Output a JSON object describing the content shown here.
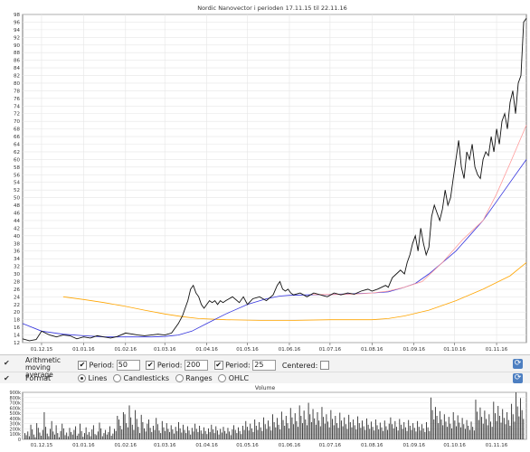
{
  "chart_data": [
    {
      "type": "line",
      "title": "Nordic Nanovector i perioden 17.11.15 til 22.11.16",
      "ylim": [
        12,
        98
      ],
      "y_ticks": [
        12,
        14,
        16,
        18,
        20,
        22,
        24,
        26,
        28,
        30,
        32,
        34,
        36,
        38,
        40,
        42,
        44,
        46,
        48,
        50,
        52,
        54,
        56,
        58,
        60,
        62,
        64,
        66,
        68,
        70,
        72,
        74,
        76,
        78,
        80,
        82,
        84,
        86,
        88,
        90,
        92,
        94,
        96,
        98
      ],
      "x_tick_labels": [
        "01.12.15",
        "01.01.16",
        "01.02.16",
        "01.03.16",
        "01.04.16",
        "01.05.16",
        "01.06.16",
        "01.07.16",
        "01.08.16",
        "01.09.16",
        "01.10.16",
        "01.11.16"
      ],
      "x_tick_positions": [
        14,
        45,
        76,
        105,
        136,
        166,
        197,
        227,
        258,
        289,
        319,
        350
      ],
      "grid": true,
      "series": [
        {
          "key": "price",
          "color": "#111111",
          "x": [
            0,
            5,
            10,
            14,
            20,
            25,
            30,
            35,
            40,
            45,
            50,
            55,
            60,
            65,
            70,
            76,
            80,
            85,
            90,
            95,
            100,
            105,
            110,
            115,
            118,
            120,
            122,
            124,
            126,
            128,
            130,
            132,
            134,
            136,
            138,
            140,
            142,
            144,
            146,
            148,
            150,
            155,
            160,
            163,
            166,
            170,
            175,
            180,
            185,
            188,
            190,
            192,
            194,
            196,
            198,
            200,
            205,
            210,
            215,
            220,
            225,
            230,
            235,
            240,
            245,
            250,
            255,
            258,
            262,
            265,
            268,
            270,
            273,
            276,
            279,
            282,
            284,
            286,
            288,
            290,
            292,
            294,
            296,
            298,
            300,
            302,
            304,
            306,
            308,
            310,
            312,
            314,
            316,
            318,
            320,
            322,
            324,
            326,
            328,
            330,
            332,
            334,
            336,
            338,
            340,
            342,
            344,
            346,
            348,
            350,
            352,
            354,
            356,
            358,
            360,
            362,
            364,
            366,
            368,
            370,
            372
          ],
          "y": [
            13,
            12.5,
            12.8,
            15,
            14,
            13.5,
            14,
            13.8,
            13,
            13.5,
            13.2,
            13.8,
            13.5,
            13.2,
            13.6,
            14.5,
            14.3,
            14,
            13.8,
            14,
            14.2,
            14,
            14.5,
            17,
            19,
            21,
            23,
            26,
            27,
            25,
            24,
            22,
            21,
            22,
            23,
            22.5,
            23,
            22,
            23,
            22.5,
            23,
            24,
            22.5,
            24,
            22,
            23.5,
            24,
            23,
            24.5,
            27,
            28,
            26,
            25.5,
            26,
            25,
            24.5,
            25,
            24,
            25,
            24.5,
            24,
            25,
            24.5,
            25,
            24.7,
            25.5,
            26,
            25.5,
            26,
            26.5,
            27,
            26.5,
            29,
            30,
            31,
            30,
            33,
            35,
            38,
            40,
            36,
            42,
            38,
            35,
            37,
            45,
            48,
            46,
            44,
            47,
            52,
            48,
            50,
            55,
            60,
            65,
            58,
            55,
            62,
            60,
            64,
            58,
            56,
            55,
            60,
            62,
            61,
            66,
            62,
            68,
            64,
            70,
            72,
            68,
            75,
            78,
            72,
            80,
            82,
            96,
            97
          ],
          "legend_label": ""
        },
        {
          "key": "ma50",
          "color": "#ff9a9a",
          "x": [
            214,
            230,
            245,
            258,
            270,
            282,
            295,
            310,
            325,
            340,
            350,
            360,
            372
          ],
          "y": [
            24.6,
            24.6,
            24.7,
            25,
            25.5,
            26.5,
            28,
            33,
            39,
            44,
            51,
            59,
            69
          ],
          "legend_label": ""
        },
        {
          "key": "ma200",
          "color": "#3333dd",
          "x": [
            0,
            14,
            30,
            45,
            60,
            76,
            95,
            105,
            115,
            125,
            136,
            150,
            166,
            180,
            190,
            197,
            210,
            227,
            242,
            258,
            270,
            282,
            290,
            300,
            310,
            320,
            330,
            340,
            350,
            360,
            372
          ],
          "y": [
            17,
            15,
            14.2,
            13.8,
            13.5,
            13.5,
            13.5,
            13.6,
            14,
            15,
            17,
            19.5,
            22,
            23.5,
            24.2,
            24.4,
            24.5,
            24.6,
            24.8,
            25,
            25.3,
            26.5,
            27.5,
            30,
            33,
            36,
            40,
            44,
            49,
            54,
            60
          ],
          "legend_label": ""
        },
        {
          "key": "ma25",
          "color": "#ffa500",
          "x": [
            30,
            45,
            60,
            76,
            90,
            105,
            118,
            130,
            150,
            166,
            180,
            197,
            227,
            258,
            270,
            282,
            300,
            320,
            340,
            360,
            372
          ],
          "y": [
            24,
            23.3,
            22.5,
            21.5,
            20.5,
            19.5,
            18.8,
            18.3,
            18,
            17.9,
            17.8,
            17.8,
            18,
            18,
            18.3,
            19,
            20.5,
            23,
            26,
            29.5,
            33
          ],
          "legend_label": ""
        }
      ]
    },
    {
      "type": "bar",
      "title": "Volume",
      "ylim": [
        0,
        900000
      ],
      "y_tick_labels": [
        "0",
        "100k",
        "200k",
        "300k",
        "400k",
        "500k",
        "600k",
        "700k",
        "800k",
        "900k"
      ],
      "x_tick_labels": [
        "01.12.15",
        "01.01.16",
        "01.02.16",
        "01.03.16",
        "01.04.16",
        "01.05.16",
        "01.06.16",
        "01.07.16",
        "01.08.16",
        "01.09.16",
        "01.10.16",
        "01.11.16"
      ],
      "values": [
        120000,
        80000,
        150000,
        60000,
        280000,
        190000,
        90000,
        40000,
        310000,
        220000,
        130000,
        70000,
        180000,
        520000,
        240000,
        110000,
        60000,
        200000,
        350000,
        150000,
        90000,
        270000,
        120000,
        40000,
        160000,
        300000,
        210000,
        80000,
        130000,
        60000,
        220000,
        140000,
        90000,
        180000,
        250000,
        70000,
        110000,
        300000,
        160000,
        50000,
        120000,
        230000,
        90000,
        140000,
        60000,
        190000,
        270000,
        100000,
        80000,
        150000,
        320000,
        210000,
        60000,
        120000,
        180000,
        90000,
        140000,
        250000,
        70000,
        110000,
        200000,
        160000,
        450000,
        380000,
        260000,
        190000,
        520000,
        480000,
        310000,
        230000,
        650000,
        420000,
        280000,
        180000,
        560000,
        390000,
        240000,
        120000,
        470000,
        330000,
        210000,
        150000,
        300000,
        380000,
        220000,
        140000,
        260000,
        180000,
        410000,
        290000,
        170000,
        120000,
        350000,
        230000,
        160000,
        310000,
        200000,
        140000,
        270000,
        190000,
        110000,
        240000,
        160000,
        330000,
        210000,
        130000,
        280000,
        180000,
        120000,
        250000,
        170000,
        90000,
        220000,
        150000,
        300000,
        200000,
        140000,
        260000,
        170000,
        110000,
        230000,
        160000,
        100000,
        210000,
        140000,
        280000,
        190000,
        120000,
        250000,
        170000,
        90000,
        200000,
        130000,
        240000,
        160000,
        110000,
        220000,
        150000,
        80000,
        190000,
        270000,
        180000,
        120000,
        230000,
        160000,
        100000,
        260000,
        180000,
        350000,
        240000,
        170000,
        300000,
        210000,
        140000,
        380000,
        260000,
        180000,
        330000,
        230000,
        160000,
        420000,
        290000,
        200000,
        360000,
        250000,
        170000,
        480000,
        330000,
        230000,
        410000,
        280000,
        190000,
        530000,
        370000,
        260000,
        450000,
        310000,
        210000,
        600000,
        420000,
        290000,
        500000,
        350000,
        240000,
        650000,
        450000,
        310000,
        550000,
        380000,
        270000,
        700000,
        480000,
        330000,
        580000,
        400000,
        280000,
        520000,
        360000,
        250000,
        620000,
        430000,
        300000,
        480000,
        340000,
        230000,
        560000,
        390000,
        270000,
        450000,
        310000,
        220000,
        510000,
        360000,
        250000,
        420000,
        290000,
        200000,
        470000,
        330000,
        230000,
        380000,
        270000,
        190000,
        440000,
        310000,
        220000,
        360000,
        250000,
        180000,
        400000,
        280000,
        200000,
        340000,
        240000,
        170000,
        380000,
        270000,
        190000,
        320000,
        230000,
        160000,
        360000,
        250000,
        180000,
        300000,
        420000,
        290000,
        210000,
        350000,
        240000,
        170000,
        390000,
        280000,
        200000,
        330000,
        230000,
        160000,
        370000,
        260000,
        180000,
        310000,
        220000,
        150000,
        350000,
        240000,
        170000,
        290000,
        210000,
        140000,
        330000,
        230000,
        160000,
        800000,
        560000,
        380000,
        620000,
        450000,
        310000,
        540000,
        380000,
        270000,
        480000,
        340000,
        240000,
        430000,
        300000,
        210000,
        520000,
        360000,
        250000,
        460000,
        320000,
        230000,
        410000,
        290000,
        200000,
        370000,
        260000,
        180000,
        340000,
        240000,
        170000,
        760000,
        530000,
        370000,
        610000,
        430000,
        300000,
        550000,
        390000,
        270000,
        480000,
        340000,
        240000,
        720000,
        500000,
        350000,
        640000,
        450000,
        320000,
        580000,
        410000,
        290000,
        520000,
        370000,
        260000,
        680000,
        480000,
        340000,
        900000,
        630000,
        440000,
        790000,
        560000,
        390000
      ]
    }
  ],
  "controls": {
    "check_mark": "✔",
    "ma_label": "Arithmetic moving average",
    "period_label": "Period:",
    "period1": "50",
    "period2": "200",
    "period3": "25",
    "centered_label": "Centered:",
    "format_label": "Format",
    "opt_lines": "Lines",
    "opt_candlesticks": "Candlesticks",
    "opt_ranges": "Ranges",
    "opt_ohlc": "OHLC"
  }
}
